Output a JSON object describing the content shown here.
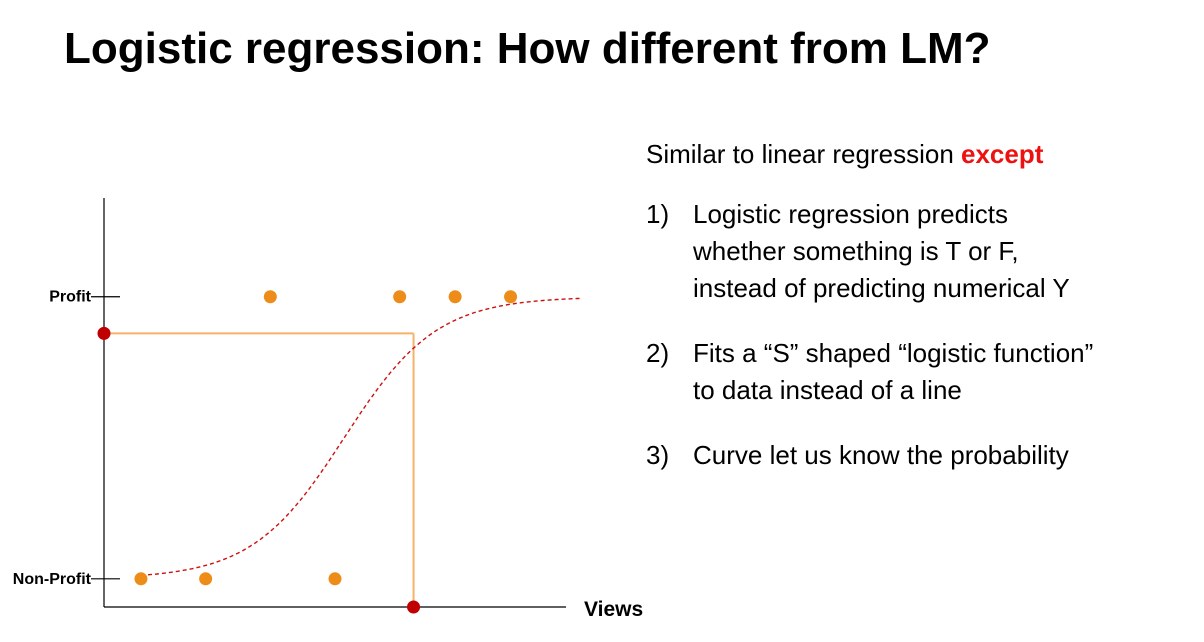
{
  "title": "Logistic regression: How different from LM?",
  "intro": {
    "prefix": "Similar to linear regression ",
    "emphasis": "except"
  },
  "points": [
    {
      "number": "1)",
      "lines": [
        "Logistic regression predicts",
        "whether something is T or F,",
        "instead of predicting numerical Y"
      ]
    },
    {
      "number": "2)",
      "lines": [
        "Fits a “S” shaped “logistic function”",
        "to data instead of a line"
      ]
    },
    {
      "number": "3)",
      "lines": [
        "Curve let us know the probability"
      ]
    }
  ],
  "chart_data": {
    "type": "scatter",
    "xlabel": "Views",
    "y_tick_labels": [
      "Non-Profit",
      "Profit"
    ],
    "y_tick_values": [
      0,
      1
    ],
    "xlim": [
      0,
      100
    ],
    "ylim": [
      -0.1,
      1.35
    ],
    "series": [
      {
        "points": [
          {
            "x": 8,
            "y": 0
          },
          {
            "x": 22,
            "y": 0
          },
          {
            "x": 50,
            "y": 0
          }
        ],
        "color": "#ee8c1a"
      },
      {
        "points": [
          {
            "x": 36,
            "y": 1
          },
          {
            "x": 64,
            "y": 1
          },
          {
            "x": 76,
            "y": 1
          },
          {
            "x": 88,
            "y": 1
          }
        ],
        "color": "#ee8c1a"
      }
    ],
    "curve": {
      "kind": "logistic",
      "midpoint": 52,
      "steepness": 0.1,
      "color": "#cc1111",
      "style": "dashed"
    },
    "guide": {
      "x": 67,
      "y": 0.87,
      "color": "#f5b26a"
    },
    "markers": [
      {
        "x": 67,
        "y": -0.1
      },
      {
        "x": 0,
        "y": 0.87
      }
    ],
    "marker_color": "#c00000",
    "grid": false,
    "legend": "none"
  }
}
